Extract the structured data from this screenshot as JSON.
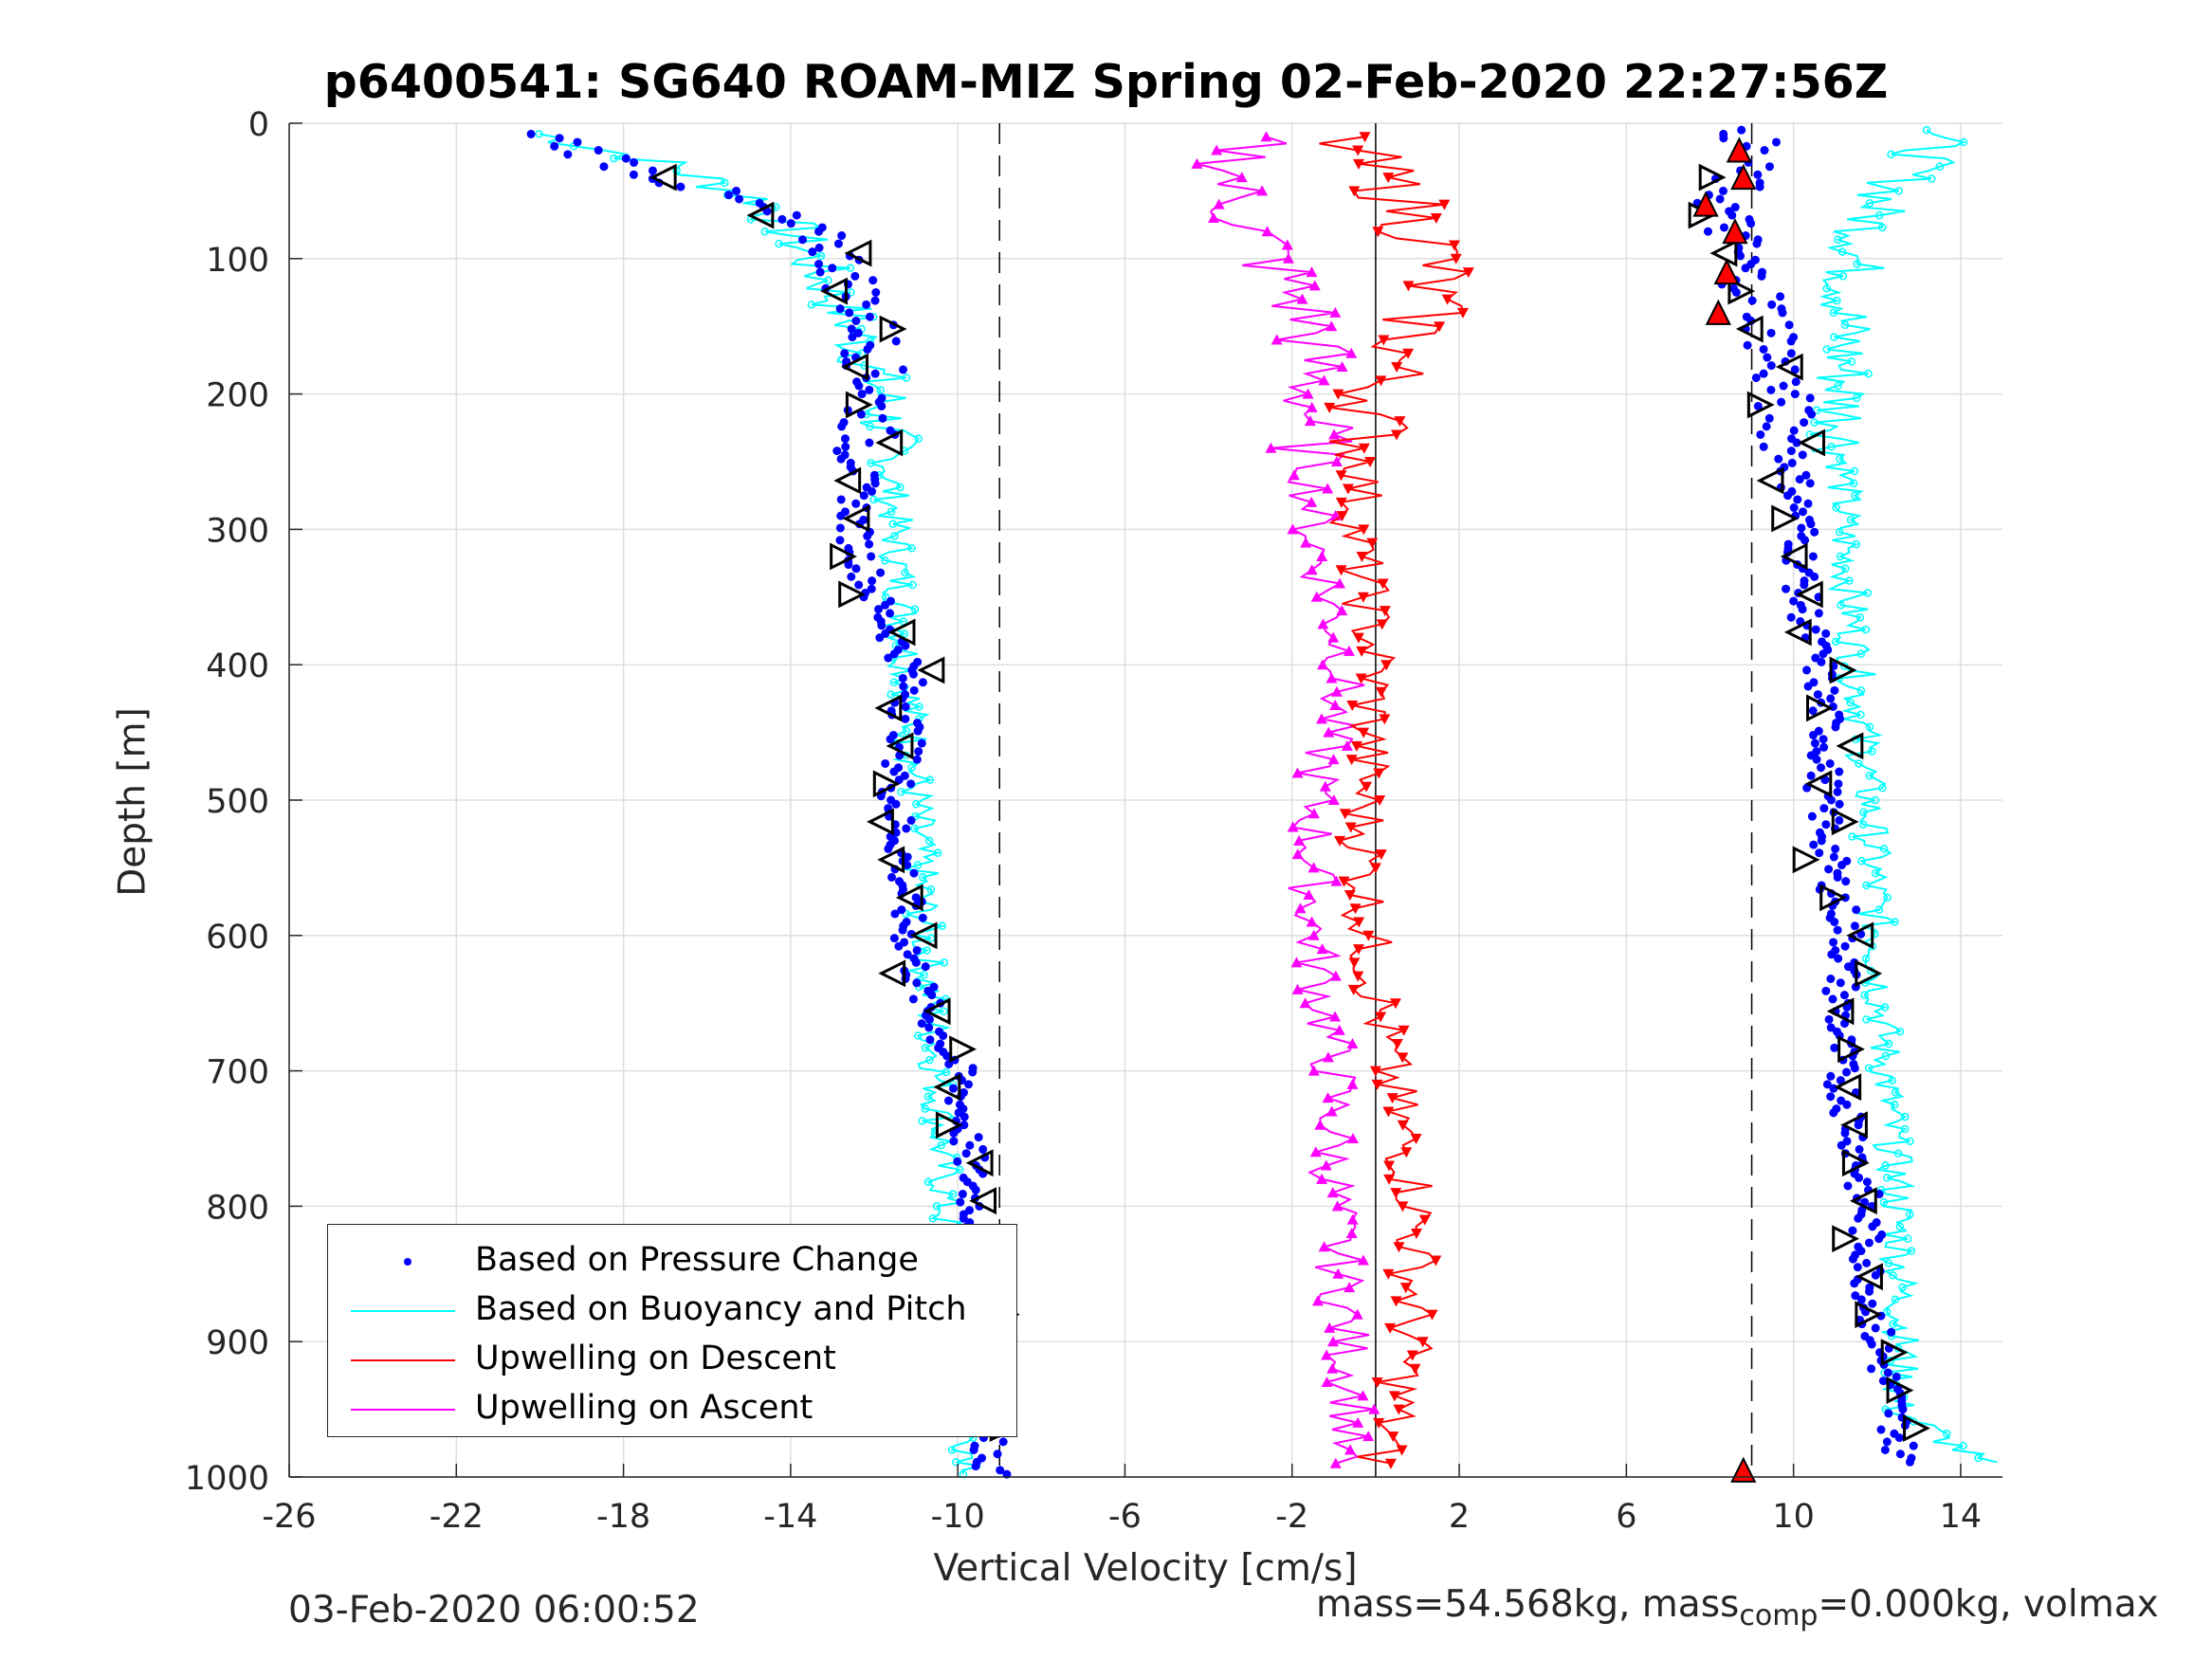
{
  "title": "p6400541: SG640 ROAM-MIZ Spring 02-Feb-2020 22:27:56Z",
  "footer_left": "03-Feb-2020 06:00:52",
  "footer_right": {
    "prefix": "mass=54.568kg, mass",
    "sub": "comp",
    "suffix": "=0.000kg, volmax"
  },
  "legend": [
    {
      "label": "Based on Pressure Change",
      "color": "#0000ff",
      "style": "dot"
    },
    {
      "label": "Based on Buoyancy and Pitch",
      "color": "#00ffff",
      "style": "line"
    },
    {
      "label": "Upwelling on Descent",
      "color": "#ff0000",
      "style": "line"
    },
    {
      "label": "Upwelling on Ascent",
      "color": "#ff00ff",
      "style": "line"
    }
  ],
  "chart_data": {
    "type": "line",
    "title": "p6400541: SG640 ROAM-MIZ Spring 02-Feb-2020 22:27:56Z",
    "xlabel": "Vertical Velocity [cm/s]",
    "ylabel": "Depth [m]",
    "xlim": [
      -26,
      15
    ],
    "ylim": [
      0,
      1000
    ],
    "y_reversed": true,
    "grid": true,
    "legend_position": "bottom-left",
    "x_ticks": [
      -26,
      -22,
      -18,
      -14,
      -10,
      -6,
      -2,
      2,
      6,
      10,
      14
    ],
    "x_tick_labels": [
      "-26",
      "-22",
      "-18",
      "-14",
      "-10",
      "-6",
      "-2",
      "2",
      "6",
      "10",
      "14"
    ],
    "y_ticks": [
      0,
      100,
      200,
      300,
      400,
      500,
      600,
      700,
      800,
      900,
      1000
    ],
    "y_tick_labels": [
      "0",
      "100",
      "200",
      "300",
      "400",
      "500",
      "600",
      "700",
      "800",
      "900",
      "1000"
    ],
    "reference_lines": {
      "solid_x": [
        0
      ],
      "dashed_x": [
        -9,
        9
      ]
    },
    "series": [
      {
        "name": "Based on Pressure Change",
        "color": "#0000ff",
        "style": "dot",
        "profiles": {
          "descent": {
            "depth": [
              8,
              30,
              60,
              90,
              120,
              160,
              200,
              250,
              300,
              350,
              400,
              450,
              500,
              550,
              600,
              650,
              700,
              750,
              800,
              850,
              900,
              950,
              1000
            ],
            "velocity": [
              -20,
              -18,
              -15,
              -13,
              -12.5,
              -12,
              -12,
              -12.3,
              -12.5,
              -12,
              -11.2,
              -11.2,
              -11.5,
              -11.3,
              -11.2,
              -10.8,
              -10,
              -9.8,
              -9.6,
              -9.5,
              -9.4,
              -9.3,
              -9.2
            ]
          },
          "ascent": {
            "depth": [
              5,
              30,
              60,
              100,
              150,
              200,
              250,
              300,
              350,
              400,
              450,
              500,
              550,
              600,
              650,
              700,
              750,
              800,
              850,
              900,
              950,
              990
            ],
            "velocity": [
              9,
              8.8,
              8.3,
              8.7,
              9.5,
              9.7,
              10,
              10.2,
              10.2,
              10.6,
              10.8,
              10.7,
              10.9,
              11.3,
              11.1,
              11.1,
              11.5,
              11.7,
              11.8,
              12,
              12.4,
              12.6
            ]
          }
        }
      },
      {
        "name": "Based on Buoyancy and Pitch",
        "color": "#00ffff",
        "style": "line",
        "profiles": {
          "descent": {
            "depth": [
              8,
              30,
              60,
              100,
              150,
              200,
              300,
              400,
              500,
              600,
              700,
              800,
              900,
              950,
              998
            ],
            "velocity": [
              -20,
              -17,
              -14.5,
              -13.5,
              -12.5,
              -11.8,
              -11.5,
              -11.2,
              -11,
              -10.8,
              -10.5,
              -10.3,
              -10.2,
              -10,
              -9.5
            ]
          },
          "ascent": {
            "depth": [
              5,
              30,
              60,
              100,
              150,
              200,
              300,
              400,
              500,
              600,
              700,
              800,
              900,
              950,
              990
            ],
            "velocity": [
              13.5,
              13,
              12,
              11.5,
              11.2,
              11.2,
              11.2,
              11.5,
              11.8,
              12,
              12.2,
              12.5,
              12.6,
              12.5,
              14.5
            ]
          }
        }
      },
      {
        "name": "Upwelling on Descent",
        "color": "#ff0000",
        "style": "line-triangle-down",
        "depth": [
          10,
          50,
          100,
          150,
          200,
          300,
          400,
          500,
          600,
          700,
          800,
          900,
          950,
          990
        ],
        "velocity": [
          -1,
          0.5,
          1.5,
          1,
          0,
          -0.5,
          0,
          -0.3,
          -0.2,
          0.3,
          1,
          0.8,
          0.5,
          0
        ]
      },
      {
        "name": "Upwelling on Ascent",
        "color": "#ff00ff",
        "style": "line-triangle-up",
        "depth": [
          10,
          50,
          100,
          150,
          200,
          300,
          400,
          500,
          600,
          700,
          800,
          900,
          950,
          990
        ],
        "velocity": [
          -3,
          -3.5,
          -2.5,
          -1.5,
          -1.5,
          -1.5,
          -0.7,
          -1.5,
          -1.5,
          -1,
          -1,
          -0.7,
          -0.5,
          -1
        ]
      }
    ],
    "markers": {
      "black_triangles_note": "roll/pitch control markers along profiles",
      "red_triangles_depth": [
        20,
        40,
        60,
        80,
        110,
        140,
        995
      ],
      "red_triangles_velocity": [
        8.7,
        8.8,
        7.9,
        8.6,
        8.4,
        8.2,
        8.8
      ]
    }
  }
}
